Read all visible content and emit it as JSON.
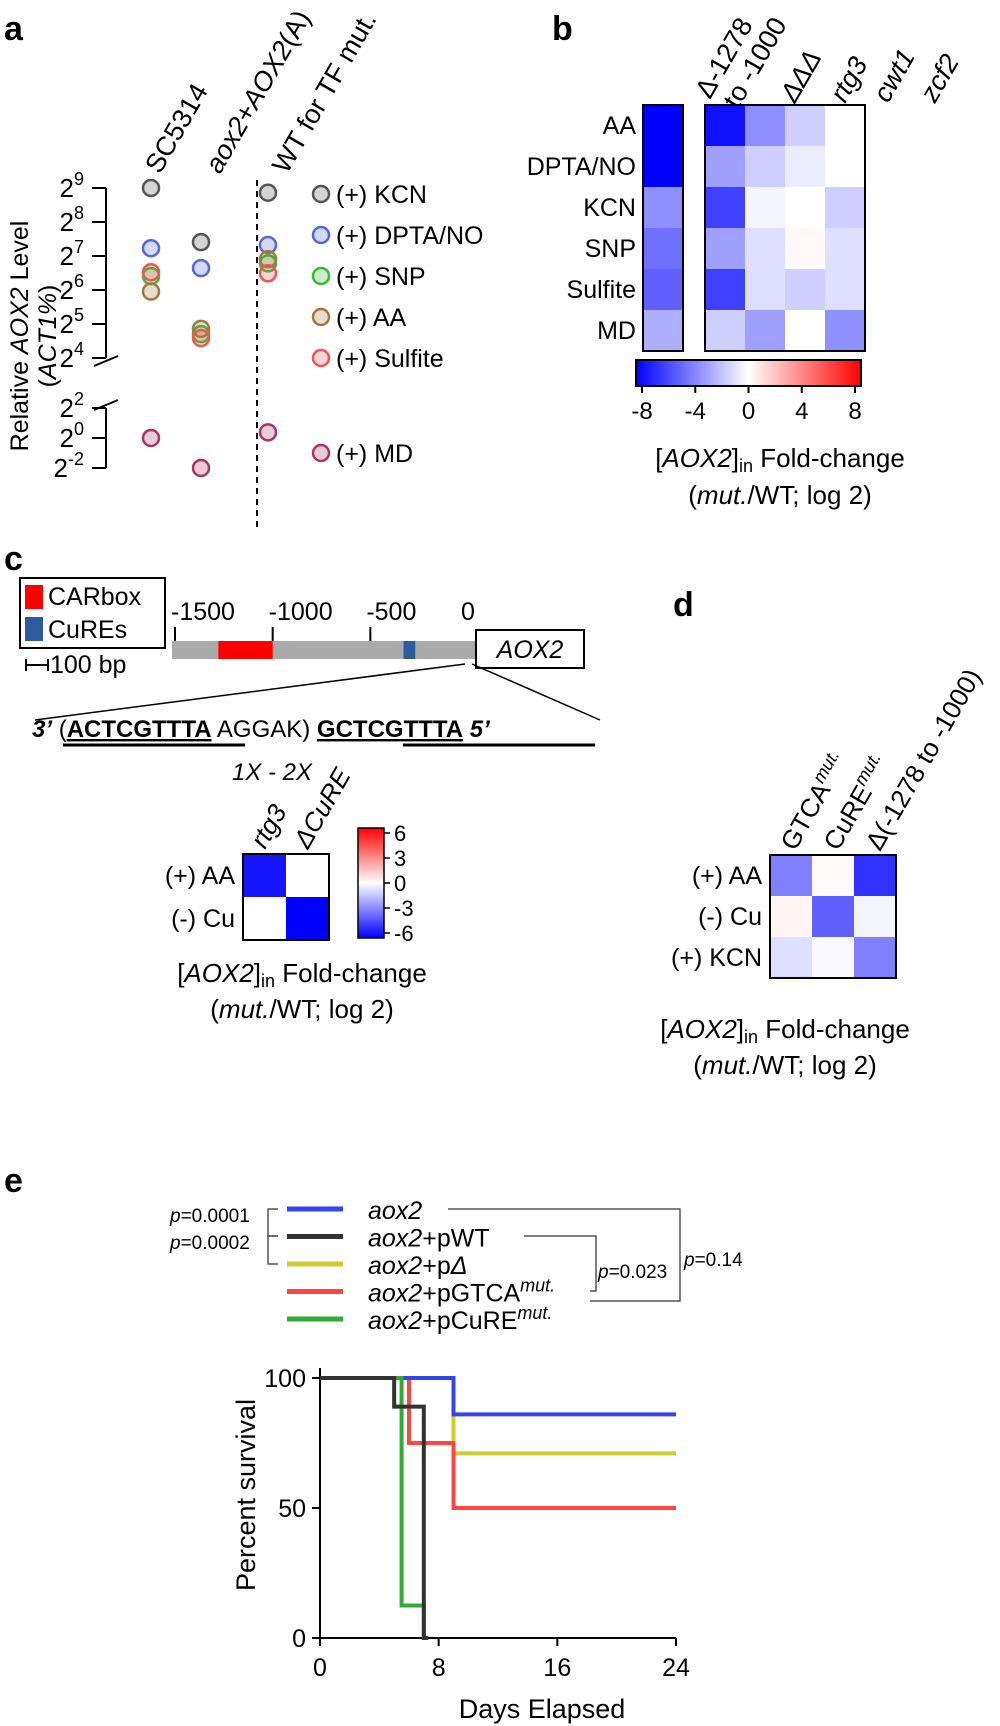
{
  "panels": {
    "a": "a",
    "b": "b",
    "c": "c",
    "d": "d",
    "e": "e"
  },
  "chart_data": [
    {
      "panel": "a",
      "type": "scatter",
      "ylabel_parts": [
        "Relative ",
        "AOX2",
        " Level"
      ],
      "ylabel2": "ACT1%",
      "y_scale": "log2",
      "y_axis_break": true,
      "y_ticks_upper": [
        {
          "base": "2",
          "exp": "9",
          "value": 512
        },
        {
          "base": "2",
          "exp": "8",
          "value": 256
        },
        {
          "base": "2",
          "exp": "7",
          "value": 128
        },
        {
          "base": "2",
          "exp": "6",
          "value": 64
        },
        {
          "base": "2",
          "exp": "5",
          "value": 32
        },
        {
          "base": "2",
          "exp": "4",
          "value": 16
        }
      ],
      "y_ticks_lower": [
        {
          "base": "2",
          "exp": "2",
          "value": 4
        },
        {
          "base": "2",
          "exp": "0",
          "value": 1
        },
        {
          "base": "2",
          "exp": "-2",
          "value": 0.25
        }
      ],
      "groups": [
        "SC5314",
        "aox2+AOX2(A)",
        "WT for TF mut."
      ],
      "group_labels": [
        {
          "plain": "SC5314"
        },
        {
          "italic": "aox2",
          "plain": "+",
          "italic2": "AOX2",
          "plain2": "(A)"
        },
        {
          "plain": "WT for TF mut."
        }
      ],
      "series": [
        {
          "name": "(+) KCN",
          "color": "#555555",
          "values": [
            512,
            170,
            465
          ]
        },
        {
          "name": "(+) DPTA/NO",
          "color": "#5566dd",
          "values": [
            150,
            100,
            160
          ]
        },
        {
          "name": "(+) SNP",
          "color": "#33bb33",
          "values": [
            85,
            26,
            110
          ]
        },
        {
          "name": "(+) AA",
          "color": "#a0783c",
          "values": [
            62,
            29,
            120
          ]
        },
        {
          "name": "(+) Sulfite",
          "color": "#ee5555",
          "values": [
            92,
            24,
            90
          ]
        },
        {
          "name": "(+) MD",
          "color": "#aa3366",
          "values": [
            1,
            0.25,
            1.3
          ]
        }
      ]
    },
    {
      "panel": "b",
      "type": "heatmap",
      "columns": [
        "Δ-1278 to -1000",
        "ΔΔΔ",
        "rtg3",
        "cwt1",
        "zcf2"
      ],
      "col_label_del": [
        "Δ-1278",
        "to -1000"
      ],
      "rows": [
        "AA",
        "DPTA/NO",
        "KCN",
        "SNP",
        "Sulfite",
        "MD"
      ],
      "values": [
        [
          -8,
          -7.5,
          -3.5,
          -1.5,
          0
        ],
        [
          -8,
          -3,
          -1.5,
          -0.6,
          0
        ],
        [
          -3.5,
          -6,
          -0.3,
          0,
          -1.5
        ],
        [
          -4.5,
          -3,
          -1,
          0.2,
          -1
        ],
        [
          -5,
          -6,
          -1,
          -1.5,
          -1
        ],
        [
          -2.5,
          -1.5,
          -3,
          0,
          -3.5
        ]
      ],
      "colorbar": {
        "ticks": [
          "-8",
          "-4",
          "0",
          "4",
          "8"
        ],
        "range": [
          -8,
          8
        ],
        "colors": [
          "#0000ff",
          "#ffffff",
          "#ff0000"
        ]
      },
      "caption_parts": [
        "[",
        "AOX2",
        "]",
        "in",
        " Fold-change"
      ],
      "caption2_parts": [
        "(",
        "mut.",
        "/WT; log 2)"
      ]
    },
    {
      "panel": "c",
      "type": "diagram",
      "legend": [
        {
          "label": "CARbox",
          "color": "#ff0000"
        },
        {
          "label": "CuREs",
          "color": "#2e5a9e"
        }
      ],
      "scale_bar": "100 bp",
      "ticks": [
        {
          "label": "-1500",
          "value": -1500
        },
        {
          "label": "-1000",
          "value": -1000
        },
        {
          "label": "-500",
          "value": -500
        },
        {
          "label": "0",
          "value": 0
        }
      ],
      "carbox_range": [
        -1278,
        -1000
      ],
      "cure_range": [
        -330,
        -270
      ],
      "gene": "AOX2",
      "sequence": {
        "left_prime": "3’",
        "open": "(",
        "motif1": "ACTCGTTTA",
        "spacer": "AGGAK)",
        "motif2": "GCTCGTTTA",
        "right_prime": "5’",
        "repeat": "1X - 2X"
      }
    },
    {
      "panel": "c-heatmap",
      "type": "heatmap",
      "columns": [
        "rtg3",
        "ΔCuRE"
      ],
      "rows": [
        "(+) AA",
        "(-) Cu"
      ],
      "values": [
        [
          -5.5,
          0
        ],
        [
          0,
          -6
        ]
      ],
      "colorbar": {
        "ticks": [
          "6",
          "3",
          "0",
          "-3",
          "-6"
        ],
        "range": [
          -6,
          6
        ],
        "colors": [
          "#0000ff",
          "#ffffff",
          "#ff0000"
        ]
      },
      "caption_parts": [
        "[",
        "AOX2",
        "]",
        "in",
        " Fold-change"
      ],
      "caption2_parts": [
        "(",
        "mut.",
        "/WT; log 2)"
      ]
    },
    {
      "panel": "d",
      "type": "heatmap",
      "columns": [
        "GTCAmut.",
        "CuREmut.",
        "Δ(-1278 to -1000)"
      ],
      "col_label_parts": [
        {
          "main": "GTCA",
          "sup": "mut."
        },
        {
          "main": "CuRE",
          "sup": "mut."
        },
        {
          "main": "Δ(-1278 to -1000)",
          "sup": ""
        }
      ],
      "rows": [
        "(+) AA",
        "(-) Cu",
        "(+) KCN"
      ],
      "values": [
        [
          -4,
          0.2,
          -6.5
        ],
        [
          0.3,
          -5,
          -0.3
        ],
        [
          -1,
          -0.2,
          -4
        ]
      ],
      "colorbar_range": [
        -8,
        8
      ],
      "caption_parts": [
        "[",
        "AOX2",
        "]",
        "in",
        " Fold-change"
      ],
      "caption2_parts": [
        "(",
        "mut.",
        "/WT; log 2)"
      ]
    },
    {
      "panel": "e",
      "type": "line",
      "subtype": "kaplan-meier",
      "xlabel": "Days Elapsed",
      "ylabel": "Percent survival",
      "xlim": [
        0,
        24
      ],
      "ylim": [
        0,
        100
      ],
      "xticks": [
        "0",
        "8",
        "16",
        "24"
      ],
      "xtick_values": [
        0,
        8,
        16,
        24
      ],
      "yticks": [
        "0",
        "50",
        "100"
      ],
      "ytick_values": [
        0,
        50,
        100
      ],
      "series": [
        {
          "name": "aox2",
          "name_parts": [
            "aox2",
            "",
            ""
          ],
          "color": "#3344ee",
          "x": [
            0,
            9,
            24
          ],
          "y": [
            100,
            86,
            86
          ]
        },
        {
          "name": "aox2+pWT",
          "name_parts": [
            "aox2",
            "+pWT",
            ""
          ],
          "color": "#333333",
          "x": [
            0,
            5,
            6,
            7,
            7.3
          ],
          "y": [
            100,
            89,
            89,
            0,
            0
          ]
        },
        {
          "name": "aox2+pΔ",
          "name_parts": [
            "aox2",
            "+p",
            "Δ"
          ],
          "color": "#cccc33",
          "x": [
            0,
            9,
            24
          ],
          "y": [
            100,
            71,
            71
          ]
        },
        {
          "name": "aox2+pGTCAmut.",
          "name_parts": [
            "aox2",
            "+pGTCA",
            "mut."
          ],
          "color": "#ff4444",
          "x": [
            0,
            6,
            9,
            24
          ],
          "y": [
            100,
            75,
            50,
            50
          ]
        },
        {
          "name": "aox2+pCuREmut.",
          "name_parts": [
            "aox2",
            "+pCuRE",
            "mut."
          ],
          "color": "#33aa33",
          "x": [
            0,
            5.5,
            7
          ],
          "y": [
            100,
            12.5,
            0
          ]
        }
      ],
      "pvalues": {
        "p1": "0.0001",
        "p2": "0.0002",
        "p3": "0.023",
        "p4": "0.14",
        "prefix": "p",
        "eq": "="
      }
    }
  ]
}
